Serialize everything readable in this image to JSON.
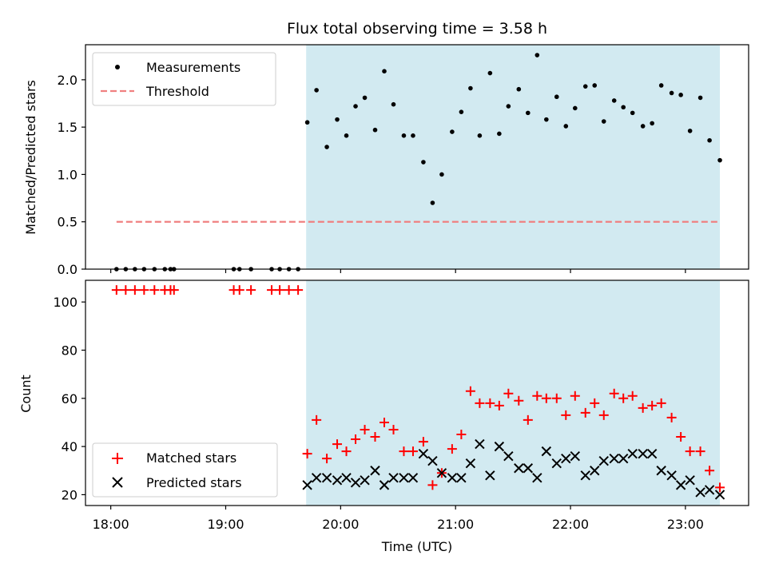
{
  "chart_data": {
    "type": "scatter",
    "title": "Flux total observing time = 3.58 h",
    "xlabel": "Time (UTC)",
    "x_unit": "hours since 18:00 UTC",
    "xlim": [
      -0.22,
      5.55
    ],
    "xticks": [
      0,
      1,
      2,
      3,
      4,
      5
    ],
    "xtick_labels": [
      "18:00",
      "19:00",
      "20:00",
      "21:00",
      "22:00",
      "23:00"
    ],
    "observing_window": {
      "start": 1.7,
      "end": 5.3,
      "color": "#add8e6"
    },
    "top_panel": {
      "ylabel": "Matched/Predicted stars",
      "ylim": [
        0,
        2.37
      ],
      "yticks": [
        0.0,
        0.5,
        1.0,
        1.5,
        2.0
      ],
      "ytick_labels": [
        "0.0",
        "0.5",
        "1.0",
        "1.5",
        "2.0"
      ],
      "threshold": {
        "value": 0.5,
        "x_range": [
          0.05,
          5.3
        ],
        "color": "#f08080"
      },
      "legend": [
        "Measurements",
        "Threshold"
      ],
      "measurements": {
        "x": [
          0.05,
          0.13,
          0.21,
          0.29,
          0.38,
          0.47,
          0.52,
          0.55,
          1.07,
          1.12,
          1.22,
          1.4,
          1.47,
          1.55,
          1.63,
          1.71,
          1.79,
          1.88,
          1.97,
          2.05,
          2.13,
          2.21,
          2.3,
          2.38,
          2.46,
          2.55,
          2.63,
          2.72,
          2.8,
          2.88,
          2.97,
          3.05,
          3.13,
          3.21,
          3.3,
          3.38,
          3.46,
          3.55,
          3.63,
          3.71,
          3.79,
          3.88,
          3.96,
          4.04,
          4.13,
          4.21,
          4.29,
          4.38,
          4.46,
          4.54,
          4.63,
          4.71,
          4.79,
          4.88,
          4.96,
          5.04,
          5.13,
          5.21,
          5.3
        ],
        "y": [
          0,
          0,
          0,
          0,
          0,
          0,
          0,
          0,
          0,
          0,
          0,
          0,
          0,
          0,
          0,
          1.55,
          1.89,
          1.29,
          1.58,
          1.41,
          1.72,
          1.81,
          1.47,
          2.09,
          1.74,
          1.41,
          1.41,
          1.13,
          0.7,
          1.0,
          1.45,
          1.66,
          1.91,
          1.41,
          2.07,
          1.43,
          1.72,
          1.9,
          1.65,
          2.26,
          1.58,
          1.82,
          1.51,
          1.7,
          1.93,
          1.94,
          1.56,
          1.78,
          1.71,
          1.65,
          1.51,
          1.54,
          1.94,
          1.86,
          1.84,
          1.46,
          1.81,
          1.36,
          1.15
        ]
      }
    },
    "bottom_panel": {
      "ylabel": "Count",
      "ylim": [
        15.5,
        109
      ],
      "yticks": [
        20,
        40,
        60,
        80,
        100
      ],
      "ytick_labels": [
        "20",
        "40",
        "60",
        "80",
        "100"
      ],
      "legend": [
        "Matched stars",
        "Predicted stars"
      ],
      "matched_stars": {
        "x": [
          0.05,
          0.13,
          0.21,
          0.29,
          0.38,
          0.47,
          0.52,
          0.55,
          1.07,
          1.12,
          1.22,
          1.4,
          1.47,
          1.55,
          1.63,
          1.71,
          1.79,
          1.88,
          1.97,
          2.05,
          2.13,
          2.21,
          2.3,
          2.38,
          2.46,
          2.55,
          2.63,
          2.72,
          2.8,
          2.88,
          2.97,
          3.05,
          3.13,
          3.21,
          3.3,
          3.38,
          3.46,
          3.55,
          3.63,
          3.71,
          3.79,
          3.88,
          3.96,
          4.04,
          4.13,
          4.21,
          4.29,
          4.38,
          4.46,
          4.54,
          4.63,
          4.71,
          4.79,
          4.88,
          4.96,
          5.04,
          5.13,
          5.21,
          5.3
        ],
        "y": [
          105,
          105,
          105,
          105,
          105,
          105,
          105,
          105,
          105,
          105,
          105,
          105,
          105,
          105,
          105,
          37,
          51,
          35,
          41,
          38,
          43,
          47,
          44,
          50,
          47,
          38,
          38,
          42,
          24,
          29,
          39,
          45,
          63,
          58,
          58,
          57,
          62,
          59,
          51,
          61,
          60,
          60,
          53,
          61,
          54,
          58,
          53,
          62,
          60,
          61,
          56,
          57,
          58,
          52,
          44,
          38,
          38,
          30,
          23
        ]
      },
      "predicted_stars": {
        "x": [
          1.71,
          1.79,
          1.88,
          1.97,
          2.05,
          2.13,
          2.21,
          2.3,
          2.38,
          2.46,
          2.55,
          2.63,
          2.72,
          2.8,
          2.88,
          2.97,
          3.05,
          3.13,
          3.21,
          3.3,
          3.38,
          3.46,
          3.55,
          3.63,
          3.71,
          3.79,
          3.88,
          3.96,
          4.04,
          4.13,
          4.21,
          4.29,
          4.38,
          4.46,
          4.54,
          4.63,
          4.71,
          4.79,
          4.88,
          4.96,
          5.04,
          5.13,
          5.21,
          5.3
        ],
        "y": [
          24,
          27,
          27,
          26,
          27,
          25,
          26,
          30,
          24,
          27,
          27,
          27,
          37,
          34,
          29,
          27,
          27,
          33,
          41,
          28,
          40,
          36,
          31,
          31,
          27,
          38,
          33,
          35,
          36,
          28,
          30,
          34,
          35,
          35,
          37,
          37,
          37,
          30,
          28,
          24,
          26,
          21,
          22,
          20
        ]
      }
    }
  }
}
